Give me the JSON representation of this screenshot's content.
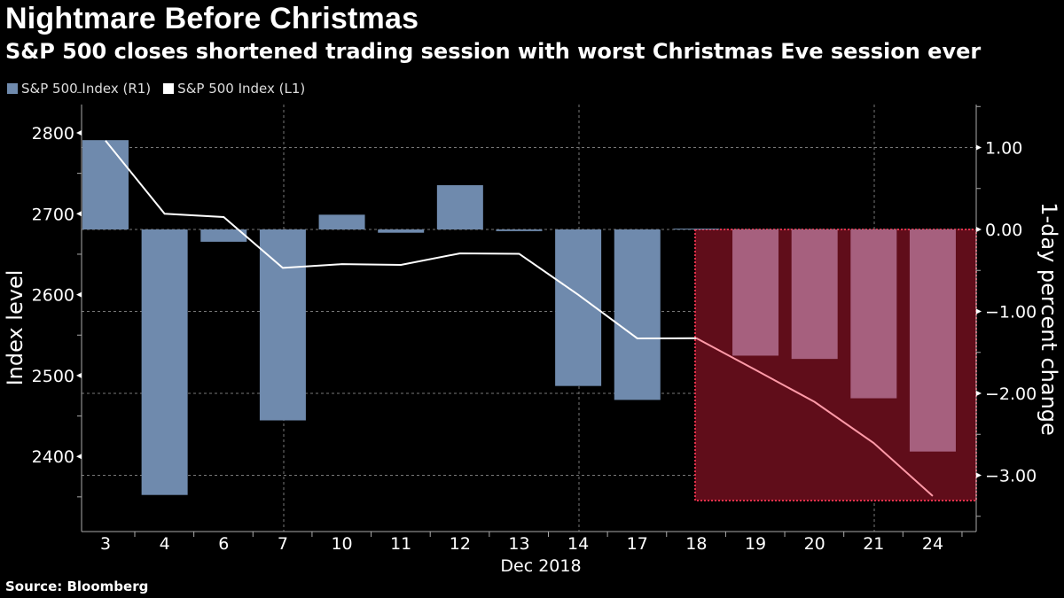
{
  "title": "Nightmare Before Christmas",
  "subtitle": "S&P 500 closes shortened trading session with worst Christmas Eve session ever",
  "source": "Source: Bloomberg",
  "chart_data": {
    "type": "bar+line",
    "categories": [
      "3",
      "4",
      "6",
      "7",
      "10",
      "11",
      "12",
      "13",
      "14",
      "17",
      "18",
      "19",
      "20",
      "21",
      "24"
    ],
    "xlabel": "Dec 2018",
    "series": [
      {
        "name": "S&P 500 Index  (R1)",
        "type": "bar",
        "axis": "right",
        "color": "#6f8aad",
        "highlight_color": "#a6607e",
        "values": [
          1.09,
          -3.24,
          -0.15,
          -2.33,
          0.18,
          -0.04,
          0.54,
          -0.02,
          -1.91,
          -2.08,
          0.01,
          -1.54,
          -1.58,
          -2.06,
          -2.71
        ]
      },
      {
        "name": "S&P 500 Index  (L1)",
        "type": "line",
        "axis": "left",
        "color": "#ffffff",
        "highlight_color": "#ff9aa8",
        "values": [
          2790.37,
          2700.06,
          2695.95,
          2633.08,
          2637.72,
          2636.78,
          2651.07,
          2650.54,
          2599.95,
          2545.94,
          2546.16,
          2506.96,
          2467.42,
          2416.62,
          2351.1
        ]
      }
    ],
    "left_axis": {
      "label": "Index level",
      "ticks": [
        "2800",
        "2700",
        "2600",
        "2500",
        "2400"
      ]
    },
    "right_axis": {
      "label": "1-day percent change",
      "ticks": [
        "1.00",
        "0.00",
        "-1.00",
        "-2.00",
        "-3.00"
      ]
    },
    "highlight_region": {
      "from": "18",
      "to": "24",
      "color": "#600d1a"
    },
    "grid": true,
    "legend": "top-left"
  }
}
